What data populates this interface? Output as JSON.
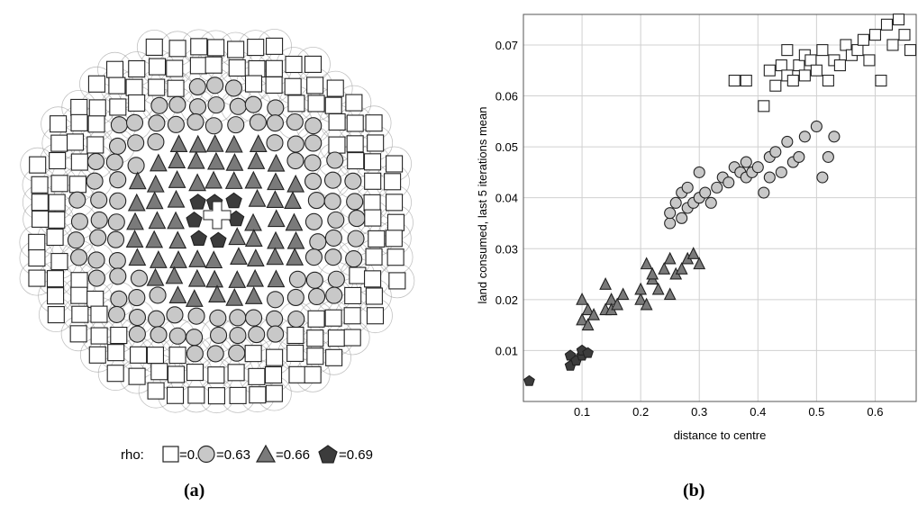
{
  "panel_a": {
    "caption": "(a)",
    "legend": {
      "prefix": "rho:",
      "items": [
        {
          "shape": "square",
          "label": "=0.6",
          "fill": "#ffffff"
        },
        {
          "shape": "circle",
          "label": "=0.63",
          "fill": "#c8c8c8"
        },
        {
          "shape": "triangle",
          "label": "=0.66",
          "fill": "#7a7a7a"
        },
        {
          "shape": "pentagon",
          "label": "=0.69",
          "fill": "#3c3c3c"
        }
      ]
    },
    "centre_marker": "cross-icon",
    "colors": {
      "square": "#ffffff",
      "circle": "#c8c8c8",
      "triangle": "#7a7a7a",
      "pentagon": "#3c3c3c",
      "stroke": "#222222",
      "halo": "#9a9a9a"
    }
  },
  "panel_b": {
    "caption": "(b)"
  },
  "chart_data": {
    "type": "scatter",
    "title": "",
    "xlabel": "distance to centre",
    "ylabel": "land consumed, last 5 iterations mean",
    "xlim": [
      0,
      0.67
    ],
    "ylim": [
      0,
      0.076
    ],
    "xticks": [
      0.1,
      0.2,
      0.3,
      0.4,
      0.5,
      0.6
    ],
    "yticks": [
      0.01,
      0.02,
      0.03,
      0.04,
      0.05,
      0.06,
      0.07
    ],
    "xtick_labels": [
      "0.1",
      "0.2",
      "0.3",
      "0.4",
      "0.5",
      "0.6"
    ],
    "ytick_labels": [
      "0.01",
      "0.02",
      "0.03",
      "0.04",
      "0.05",
      "0.06",
      "0.07"
    ],
    "grid": true,
    "series": [
      {
        "name": "=0.69",
        "marker": "pentagon",
        "color": "#3c3c3c",
        "x": [
          0.01,
          0.08,
          0.08,
          0.09,
          0.1,
          0.1,
          0.11
        ],
        "y": [
          0.004,
          0.007,
          0.009,
          0.008,
          0.009,
          0.01,
          0.0095
        ]
      },
      {
        "name": "=0.66",
        "marker": "triangle",
        "color": "#7a7a7a",
        "x": [
          0.1,
          0.1,
          0.11,
          0.11,
          0.12,
          0.14,
          0.14,
          0.15,
          0.15,
          0.16,
          0.17,
          0.2,
          0.2,
          0.21,
          0.21,
          0.22,
          0.22,
          0.23,
          0.24,
          0.25,
          0.25,
          0.26,
          0.27,
          0.28,
          0.29,
          0.3
        ],
        "y": [
          0.016,
          0.02,
          0.015,
          0.018,
          0.017,
          0.018,
          0.023,
          0.02,
          0.018,
          0.019,
          0.021,
          0.02,
          0.022,
          0.019,
          0.027,
          0.024,
          0.025,
          0.022,
          0.026,
          0.021,
          0.028,
          0.025,
          0.026,
          0.028,
          0.029,
          0.027
        ]
      },
      {
        "name": "=0.63",
        "marker": "circle",
        "color": "#c8c8c8",
        "x": [
          0.25,
          0.25,
          0.26,
          0.27,
          0.27,
          0.28,
          0.28,
          0.29,
          0.3,
          0.3,
          0.31,
          0.32,
          0.33,
          0.34,
          0.35,
          0.36,
          0.37,
          0.38,
          0.38,
          0.39,
          0.4,
          0.41,
          0.42,
          0.42,
          0.43,
          0.44,
          0.45,
          0.46,
          0.47,
          0.48,
          0.5,
          0.51,
          0.52,
          0.53
        ],
        "y": [
          0.035,
          0.037,
          0.039,
          0.036,
          0.041,
          0.038,
          0.042,
          0.039,
          0.045,
          0.04,
          0.041,
          0.039,
          0.042,
          0.044,
          0.043,
          0.046,
          0.045,
          0.044,
          0.047,
          0.045,
          0.046,
          0.041,
          0.048,
          0.044,
          0.049,
          0.045,
          0.051,
          0.047,
          0.048,
          0.052,
          0.054,
          0.044,
          0.048,
          0.052
        ]
      },
      {
        "name": "=0.6",
        "marker": "square",
        "color": "#ffffff",
        "x": [
          0.36,
          0.38,
          0.41,
          0.42,
          0.43,
          0.44,
          0.45,
          0.45,
          0.46,
          0.47,
          0.48,
          0.48,
          0.49,
          0.5,
          0.51,
          0.52,
          0.53,
          0.54,
          0.55,
          0.56,
          0.57,
          0.58,
          0.59,
          0.6,
          0.61,
          0.62,
          0.63,
          0.64,
          0.65,
          0.66
        ],
        "y": [
          0.063,
          0.063,
          0.058,
          0.065,
          0.062,
          0.066,
          0.064,
          0.069,
          0.063,
          0.066,
          0.068,
          0.064,
          0.067,
          0.065,
          0.069,
          0.063,
          0.067,
          0.066,
          0.07,
          0.068,
          0.069,
          0.071,
          0.067,
          0.072,
          0.063,
          0.074,
          0.07,
          0.075,
          0.072,
          0.069
        ]
      }
    ]
  }
}
